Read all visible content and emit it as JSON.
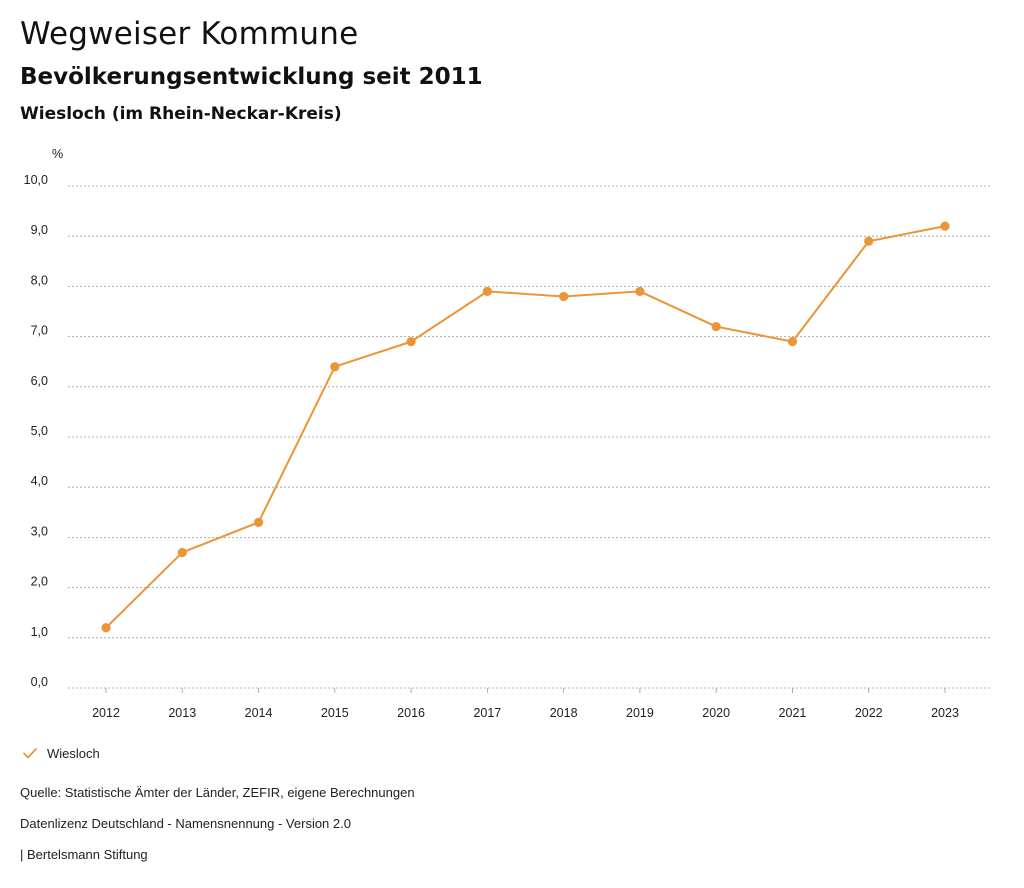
{
  "header": {
    "title": "Wegweiser Kommune",
    "subtitle": "Bevölkerungsentwicklung seit 2011",
    "place": "Wiesloch (im Rhein-Neckar-Kreis)"
  },
  "chart_data": {
    "type": "line",
    "title": "Bevölkerungsentwicklung seit 2011",
    "ylabel": "%",
    "xlabel": "",
    "ylim": [
      0,
      10
    ],
    "yticks": [
      "0,0",
      "1,0",
      "2,0",
      "3,0",
      "4,0",
      "5,0",
      "6,0",
      "7,0",
      "8,0",
      "9,0",
      "10,0"
    ],
    "grid": true,
    "categories": [
      "2012",
      "2013",
      "2014",
      "2015",
      "2016",
      "2017",
      "2018",
      "2019",
      "2020",
      "2021",
      "2022",
      "2023"
    ],
    "series": [
      {
        "name": "Wiesloch",
        "color": "#ea9536",
        "values": [
          1.2,
          2.7,
          3.3,
          6.4,
          6.9,
          7.9,
          7.8,
          7.9,
          7.2,
          6.9,
          8.9,
          9.2
        ]
      }
    ],
    "legend_position": "bottom-left"
  },
  "legend": {
    "label": "Wiesloch",
    "icon": "check-icon",
    "color": "#ea9536"
  },
  "footer": {
    "source": "Quelle: Statistische Ämter der Länder, ZEFIR, eigene Berechnungen",
    "license": "Datenlizenz Deutschland - Namensnennung - Version 2.0",
    "publisher": "| Bertelsmann Stiftung"
  }
}
